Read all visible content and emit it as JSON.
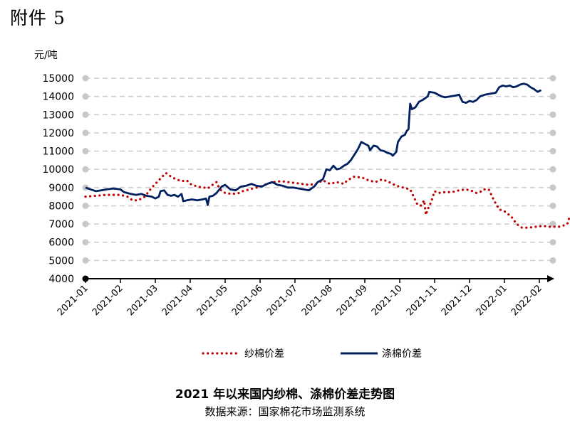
{
  "header": {
    "attachment": "附件 5"
  },
  "footer": {
    "title": "2021 年以来国内纱棉、涤棉价差走势图",
    "source": "数据来源：国家棉花市场监测系统"
  },
  "colors": {
    "series1": "#c00000",
    "series2": "#002060",
    "grid": "#cccccc",
    "axis": "#000000"
  },
  "chart_data": {
    "type": "line",
    "ylabel": "元/吨",
    "ylim": [
      4000,
      15000
    ],
    "yticks": [
      4000,
      5000,
      6000,
      7000,
      8000,
      9000,
      10000,
      11000,
      12000,
      13000,
      14000,
      15000
    ],
    "xlim": [
      0,
      13.3
    ],
    "xtick_labels": [
      "2021-01",
      "2021-02",
      "2021-03",
      "2021-04",
      "2021-05",
      "2021-06",
      "2021-07",
      "2021-08",
      "2021-09",
      "2021-10",
      "2021-11",
      "2021-12",
      "2022-01",
      "2022-02"
    ],
    "grid": true,
    "legend": "bottom",
    "series": [
      {
        "name": "纱棉价差",
        "style": "dotted",
        "points": [
          [
            0.0,
            8500
          ],
          [
            0.3,
            8550
          ],
          [
            0.6,
            8600
          ],
          [
            1.0,
            8600
          ],
          [
            1.2,
            8500
          ],
          [
            1.35,
            8300
          ],
          [
            1.5,
            8300
          ],
          [
            1.7,
            8500
          ],
          [
            1.9,
            9000
          ],
          [
            2.05,
            9300
          ],
          [
            2.2,
            9600
          ],
          [
            2.3,
            9800
          ],
          [
            2.45,
            9600
          ],
          [
            2.6,
            9450
          ],
          [
            2.75,
            9350
          ],
          [
            2.9,
            9400
          ],
          [
            3.0,
            9200
          ],
          [
            3.2,
            9050
          ],
          [
            3.4,
            9000
          ],
          [
            3.5,
            8950
          ],
          [
            3.6,
            9100
          ],
          [
            3.75,
            9300
          ],
          [
            3.85,
            8900
          ],
          [
            4.0,
            8700
          ],
          [
            4.2,
            8650
          ],
          [
            4.4,
            8700
          ],
          [
            4.5,
            8800
          ],
          [
            4.7,
            8900
          ],
          [
            5.0,
            9050
          ],
          [
            5.2,
            9200
          ],
          [
            5.4,
            9300
          ],
          [
            5.6,
            9350
          ],
          [
            5.8,
            9300
          ],
          [
            6.0,
            9250
          ],
          [
            6.2,
            9200
          ],
          [
            6.4,
            9150
          ],
          [
            6.6,
            9200
          ],
          [
            6.8,
            9400
          ],
          [
            7.0,
            9200
          ],
          [
            7.2,
            9300
          ],
          [
            7.4,
            9200
          ],
          [
            7.5,
            9400
          ],
          [
            7.7,
            9600
          ],
          [
            7.9,
            9550
          ],
          [
            8.0,
            9500
          ],
          [
            8.1,
            9400
          ],
          [
            8.3,
            9300
          ],
          [
            8.5,
            9450
          ],
          [
            8.7,
            9300
          ],
          [
            8.9,
            9100
          ],
          [
            9.1,
            9000
          ],
          [
            9.3,
            8900
          ],
          [
            9.5,
            8100
          ],
          [
            9.6,
            8000
          ],
          [
            9.7,
            8300
          ],
          [
            9.75,
            7500
          ],
          [
            9.8,
            7800
          ],
          [
            9.9,
            8200
          ],
          [
            10.0,
            8800
          ],
          [
            10.1,
            8700
          ],
          [
            10.3,
            8750
          ],
          [
            10.5,
            8750
          ],
          [
            10.7,
            8850
          ],
          [
            10.9,
            8900
          ],
          [
            11.1,
            8800
          ],
          [
            11.2,
            8700
          ],
          [
            11.3,
            8750
          ],
          [
            11.4,
            8900
          ],
          [
            11.55,
            8900
          ],
          [
            11.7,
            8300
          ],
          [
            11.85,
            7800
          ],
          [
            12.0,
            7700
          ],
          [
            12.2,
            7400
          ],
          [
            12.35,
            7000
          ],
          [
            12.5,
            6800
          ],
          [
            12.7,
            6800
          ],
          [
            12.9,
            6850
          ],
          [
            13.1,
            6900
          ],
          [
            13.3,
            6850
          ],
          [
            13.5,
            6850
          ],
          [
            13.6,
            6850
          ],
          [
            13.8,
            7000
          ],
          [
            13.85,
            7300
          ]
        ]
      },
      {
        "name": "涤棉价差",
        "style": "solid",
        "points": [
          [
            0.0,
            9000
          ],
          [
            0.15,
            8900
          ],
          [
            0.3,
            8800
          ],
          [
            0.45,
            8850
          ],
          [
            0.6,
            8900
          ],
          [
            0.8,
            8950
          ],
          [
            1.0,
            8900
          ],
          [
            1.1,
            8750
          ],
          [
            1.2,
            8700
          ],
          [
            1.3,
            8650
          ],
          [
            1.45,
            8600
          ],
          [
            1.6,
            8650
          ],
          [
            1.75,
            8550
          ],
          [
            1.9,
            8500
          ],
          [
            2.0,
            8400
          ],
          [
            2.1,
            8500
          ],
          [
            2.15,
            8800
          ],
          [
            2.25,
            8850
          ],
          [
            2.35,
            8600
          ],
          [
            2.45,
            8550
          ],
          [
            2.55,
            8600
          ],
          [
            2.65,
            8500
          ],
          [
            2.75,
            8650
          ],
          [
            2.8,
            8250
          ],
          [
            2.9,
            8300
          ],
          [
            3.05,
            8350
          ],
          [
            3.2,
            8300
          ],
          [
            3.35,
            8350
          ],
          [
            3.45,
            8400
          ],
          [
            3.5,
            8050
          ],
          [
            3.55,
            8500
          ],
          [
            3.65,
            8550
          ],
          [
            3.75,
            8700
          ],
          [
            3.9,
            9050
          ],
          [
            4.0,
            9150
          ],
          [
            4.15,
            8900
          ],
          [
            4.3,
            8850
          ],
          [
            4.45,
            9050
          ],
          [
            4.6,
            9100
          ],
          [
            4.75,
            9200
          ],
          [
            4.9,
            9100
          ],
          [
            5.05,
            9050
          ],
          [
            5.2,
            9200
          ],
          [
            5.35,
            9300
          ],
          [
            5.5,
            9150
          ],
          [
            5.65,
            9100
          ],
          [
            5.8,
            9000
          ],
          [
            5.95,
            9000
          ],
          [
            6.1,
            8950
          ],
          [
            6.25,
            8900
          ],
          [
            6.4,
            8850
          ],
          [
            6.55,
            9050
          ],
          [
            6.65,
            9300
          ],
          [
            6.8,
            9450
          ],
          [
            6.9,
            10000
          ],
          [
            7.0,
            9950
          ],
          [
            7.1,
            10200
          ],
          [
            7.2,
            10000
          ],
          [
            7.3,
            10050
          ],
          [
            7.4,
            10200
          ],
          [
            7.5,
            10300
          ],
          [
            7.6,
            10500
          ],
          [
            7.7,
            10800
          ],
          [
            7.8,
            11100
          ],
          [
            7.9,
            11500
          ],
          [
            8.0,
            11400
          ],
          [
            8.1,
            11300
          ],
          [
            8.15,
            11050
          ],
          [
            8.25,
            11300
          ],
          [
            8.35,
            11250
          ],
          [
            8.45,
            11050
          ],
          [
            8.55,
            11000
          ],
          [
            8.65,
            10900
          ],
          [
            8.75,
            10850
          ],
          [
            8.8,
            10750
          ],
          [
            8.9,
            10950
          ],
          [
            8.95,
            11500
          ],
          [
            9.05,
            11800
          ],
          [
            9.15,
            11900
          ],
          [
            9.2,
            12100
          ],
          [
            9.25,
            12200
          ],
          [
            9.3,
            13600
          ],
          [
            9.35,
            13300
          ],
          [
            9.45,
            13400
          ],
          [
            9.55,
            13700
          ],
          [
            9.65,
            13800
          ],
          [
            9.8,
            14000
          ],
          [
            9.85,
            14250
          ],
          [
            10.0,
            14200
          ],
          [
            10.1,
            14100
          ],
          [
            10.2,
            14000
          ],
          [
            10.3,
            13950
          ],
          [
            10.45,
            14000
          ],
          [
            10.6,
            14050
          ],
          [
            10.7,
            14100
          ],
          [
            10.8,
            13700
          ],
          [
            10.9,
            13650
          ],
          [
            11.0,
            13750
          ],
          [
            11.1,
            13700
          ],
          [
            11.2,
            13800
          ],
          [
            11.3,
            14000
          ],
          [
            11.45,
            14100
          ],
          [
            11.6,
            14150
          ],
          [
            11.75,
            14200
          ],
          [
            11.85,
            14500
          ],
          [
            11.95,
            14600
          ],
          [
            12.05,
            14550
          ],
          [
            12.15,
            14600
          ],
          [
            12.25,
            14500
          ],
          [
            12.35,
            14550
          ],
          [
            12.45,
            14650
          ],
          [
            12.55,
            14700
          ],
          [
            12.65,
            14650
          ],
          [
            12.75,
            14500
          ],
          [
            12.85,
            14400
          ],
          [
            12.95,
            14250
          ],
          [
            13.05,
            14350
          ]
        ]
      }
    ]
  }
}
